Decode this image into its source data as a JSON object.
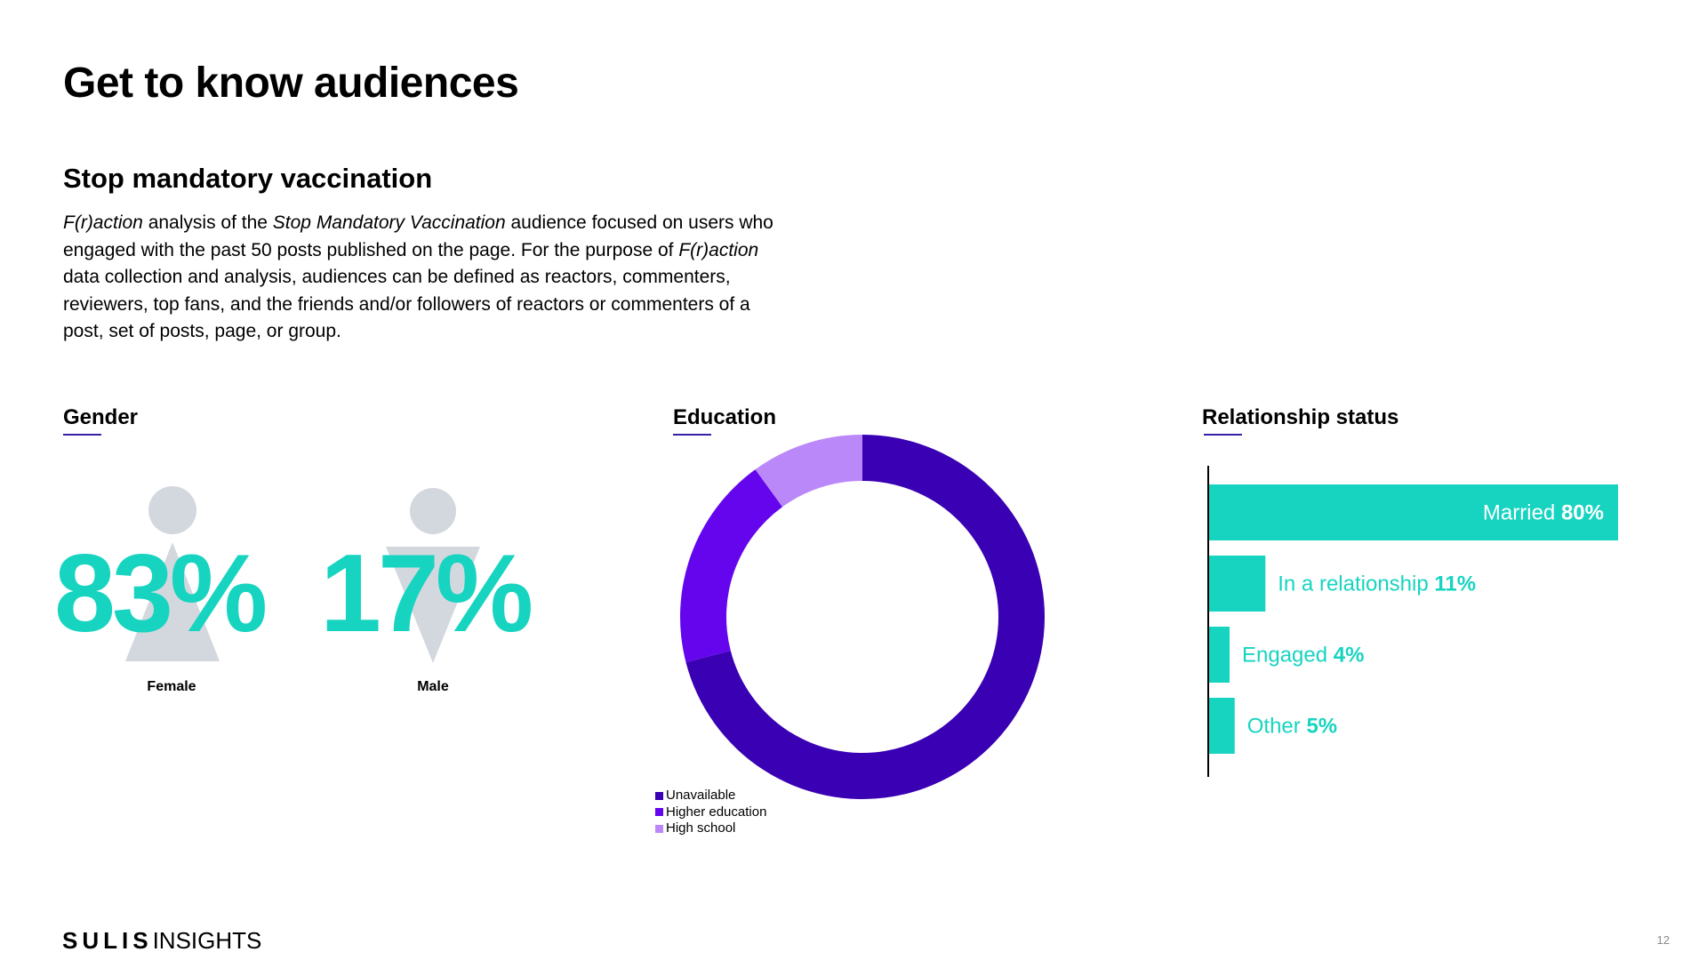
{
  "page": {
    "title": "Get to know audiences",
    "subtitle": "Stop mandatory vaccination",
    "description": {
      "p1_italic": "F(r)action",
      "p2": " analysis of the ",
      "p3_italic": "Stop Mandatory Vaccination",
      "p4": " audience focused on users who engaged with the past 50 posts published on the page. For the purpose of ",
      "p5_italic": "F(r)action",
      "p6": " data collection and analysis, audiences can be defined as reactors, commenters, reviewers, top fans, and the friends and/or followers of reactors or commenters of a post, set of posts, page, or group."
    },
    "brand": {
      "bold": "SULIS",
      "thin": "INSIGHTS"
    },
    "page_number": "12"
  },
  "colors": {
    "accent_teal": "#17d4c1",
    "figure_gray": "#d3d8de",
    "unavailable": "#3a00b3",
    "higher_education": "#6405ee",
    "high_school": "#bb88fa",
    "underline": "#3a1fa8"
  },
  "chart_data": [
    {
      "type": "pictogram",
      "title": "Gender",
      "categories": [
        "Female",
        "Male"
      ],
      "values": [
        83,
        17
      ],
      "value_labels": [
        "83%",
        "17%"
      ],
      "icons": [
        "female-figure-icon",
        "male-figure-icon"
      ]
    },
    {
      "type": "pie",
      "title": "Education",
      "donut": true,
      "categories": [
        "Unavailable",
        "Higher education",
        "High school"
      ],
      "values": [
        71,
        19,
        10
      ],
      "legend_position": "bottom-left"
    },
    {
      "type": "bar",
      "orientation": "horizontal",
      "title": "Relationship status",
      "categories": [
        "Married",
        "In a relationship",
        "Engaged",
        "Other"
      ],
      "values": [
        80,
        11,
        4,
        5
      ],
      "value_labels": [
        "80%",
        "11%",
        "4%",
        "5%"
      ],
      "xlim": [
        0,
        100
      ],
      "grid": false
    }
  ]
}
